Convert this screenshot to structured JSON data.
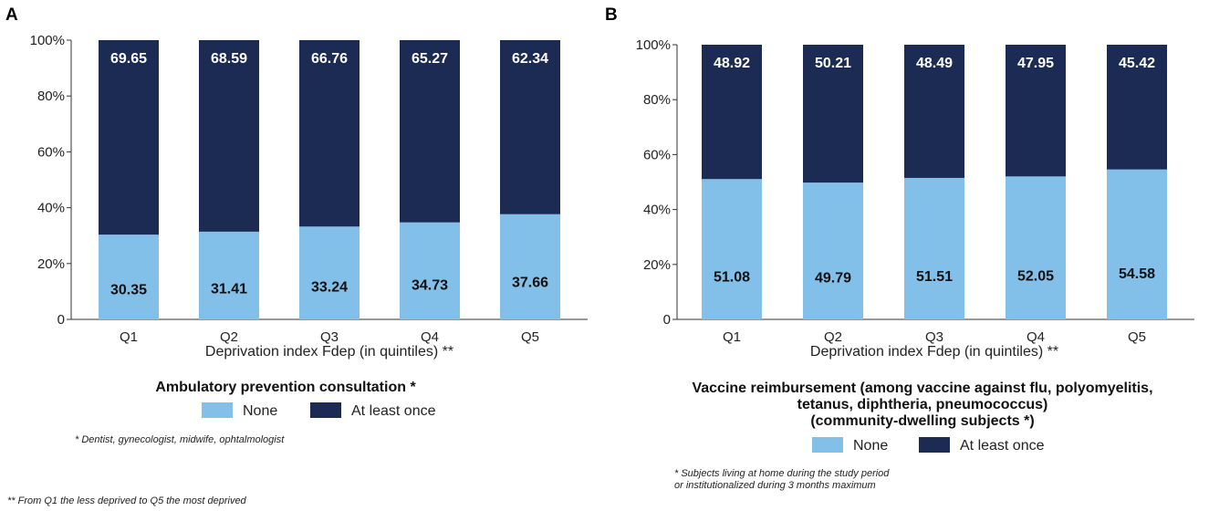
{
  "colors": {
    "none": "#82bfe9",
    "at_least_once": "#1c2b53",
    "axis": "#333333"
  },
  "chart_data": [
    {
      "type": "bar",
      "stacked": true,
      "panel": "A",
      "categories": [
        "Q1",
        "Q2",
        "Q3",
        "Q4",
        "Q5"
      ],
      "series": [
        {
          "name": "None",
          "values": [
            30.35,
            31.41,
            33.24,
            34.73,
            37.66
          ],
          "labels": [
            "30.35",
            "31.41",
            "33.24",
            "34.73",
            "37.66"
          ]
        },
        {
          "name": "At least once",
          "values": [
            69.65,
            68.59,
            66.76,
            65.27,
            62.34
          ],
          "labels": [
            "69.65",
            "68.59",
            "66.76",
            "65.27",
            "62.34"
          ]
        }
      ],
      "yticks": [
        "0",
        "20%",
        "40%",
        "60%",
        "80%",
        "100%"
      ],
      "ylim": [
        0,
        100
      ],
      "xlabel": "Deprivation index Fdep (in quintiles) **",
      "legend_title": [
        "Ambulatory prevention consultation *"
      ],
      "footnote": [
        "* Dentist, gynecologist, midwife, ophtalmologist"
      ]
    },
    {
      "type": "bar",
      "stacked": true,
      "panel": "B",
      "categories": [
        "Q1",
        "Q2",
        "Q3",
        "Q4",
        "Q5"
      ],
      "series": [
        {
          "name": "None",
          "values": [
            51.08,
            49.79,
            51.51,
            52.05,
            54.58
          ],
          "labels": [
            "51.08",
            "49.79",
            "51.51",
            "52.05",
            "54.58"
          ]
        },
        {
          "name": "At least once",
          "values": [
            48.92,
            50.21,
            48.49,
            47.95,
            45.42
          ],
          "labels": [
            "48.92",
            "50.21",
            "48.49",
            "47.95",
            "45.42"
          ]
        }
      ],
      "yticks": [
        "0",
        "20%",
        "40%",
        "60%",
        "80%",
        "100%"
      ],
      "ylim": [
        0,
        100
      ],
      "xlabel": "Deprivation index Fdep (in quintiles) **",
      "legend_title": [
        "Vaccine reimbursement (among vaccine against flu, polyomyelitis,",
        "tetanus, diphtheria, pneumococcus)",
        "(community-dwelling subjects *)"
      ],
      "footnote": [
        "* Subjects living at home during the study period",
        "or institutionalized during 3 months maximum"
      ]
    }
  ],
  "bottom_note": "** From Q1 the less deprived to Q5 the most deprived"
}
